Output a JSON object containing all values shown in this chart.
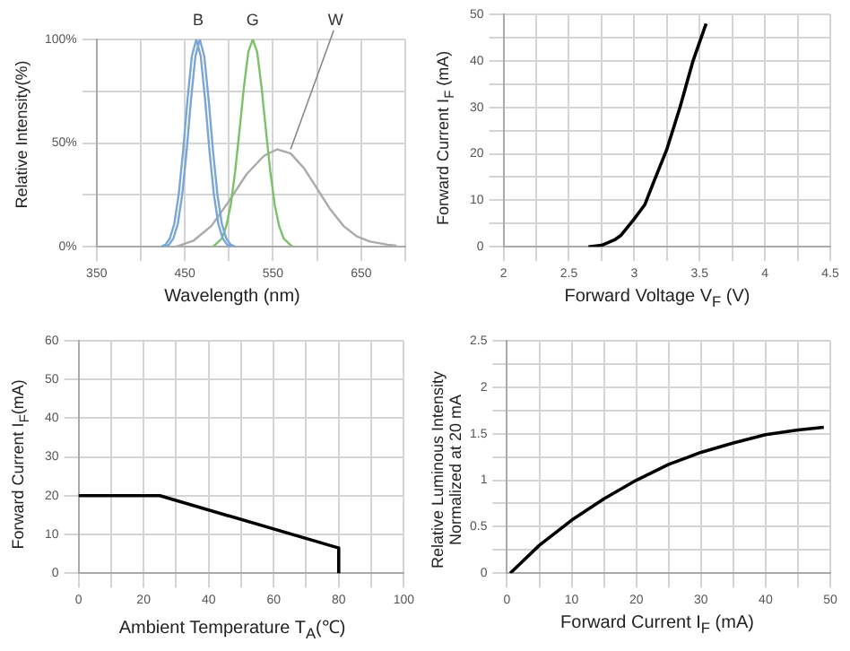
{
  "chart_data": [
    {
      "type": "line",
      "xlabel": "Wavelength  (nm)",
      "ylabel": "Relative Intensity(%)",
      "xlim": [
        350,
        700
      ],
      "ylim": [
        0,
        100
      ],
      "xticks": [
        350,
        {
          "value": 400,
          "label": null
        },
        450,
        {
          "value": 500,
          "label": null
        },
        550,
        {
          "value": 600,
          "label": null
        },
        650,
        {
          "value": 700,
          "label": null
        }
      ],
      "yticks": [
        {
          "value": 0,
          "label": "0%"
        },
        {
          "value": 25,
          "label": null
        },
        {
          "value": 50,
          "label": "50%"
        },
        {
          "value": 75,
          "label": null
        },
        {
          "value": 100,
          "label": "100%"
        }
      ],
      "grid": true,
      "legend": false,
      "marker": "none",
      "line_style": "solid",
      "annotations": [
        {
          "text": "B",
          "x": 465,
          "y": 100
        },
        {
          "text": "G",
          "x": 527,
          "y": 100
        },
        {
          "text": "W",
          "x": 570,
          "y": 47
        }
      ],
      "series": [
        {
          "color": "#7aa6d6",
          "x": [
            423,
            428,
            433,
            438,
            443,
            448,
            453,
            458,
            463,
            468,
            473,
            478,
            483,
            488,
            493,
            498,
            503
          ],
          "values": [
            0,
            1,
            4,
            11,
            25,
            46,
            71,
            92,
            100,
            92,
            71,
            46,
            25,
            11,
            4,
            1,
            0
          ]
        },
        {
          "color": "#7aa6d6",
          "x": [
            427,
            432,
            437,
            442,
            447,
            452,
            457,
            462,
            467,
            472,
            477,
            482,
            487,
            492,
            497,
            502,
            507
          ],
          "values": [
            0,
            1,
            4,
            11,
            25,
            46,
            71,
            92,
            100,
            92,
            71,
            46,
            25,
            11,
            4,
            1,
            0
          ]
        },
        {
          "color": "#7cc16a",
          "x": [
            482,
            487,
            492,
            497,
            502,
            507,
            512,
            517,
            522,
            527,
            532,
            537,
            542,
            547,
            552,
            557,
            562,
            567,
            572
          ],
          "values": [
            0,
            2,
            4,
            10,
            20,
            36,
            56,
            77,
            94,
            100,
            94,
            77,
            56,
            36,
            20,
            10,
            4,
            2,
            0
          ]
        },
        {
          "color": "#aaaaaa",
          "x": [
            440,
            460,
            480,
            500,
            520,
            540,
            555,
            570,
            585,
            600,
            615,
            630,
            645,
            660,
            680,
            690
          ],
          "values": [
            0,
            3,
            10,
            22,
            35,
            44,
            47,
            45,
            38,
            28,
            18,
            10,
            5,
            2.5,
            1,
            0.5
          ]
        }
      ]
    },
    {
      "type": "line",
      "xlabel": "Forward Voltage V$_{F}$ (V)",
      "ylabel": "Forward Current I$_{F}$ (mA)",
      "xlim": [
        2,
        4.5
      ],
      "ylim": [
        0,
        50
      ],
      "xticks": [
        2,
        {
          "value": 2.25,
          "label": null
        },
        2.5,
        {
          "value": 2.75,
          "label": null
        },
        3,
        {
          "value": 3.25,
          "label": null
        },
        3.5,
        {
          "value": 3.75,
          "label": null
        },
        4,
        {
          "value": 4.25,
          "label": null
        },
        4.5
      ],
      "yticks": [
        0,
        {
          "value": 5,
          "label": null
        },
        10,
        {
          "value": 15,
          "label": null
        },
        20,
        {
          "value": 25,
          "label": null
        },
        30,
        {
          "value": 35,
          "label": null
        },
        40,
        {
          "value": 45,
          "label": null
        },
        50
      ],
      "grid": true,
      "legend": false,
      "marker": "none",
      "line_style": "solid",
      "series": [
        {
          "color": "#000000",
          "x": [
            2.65,
            2.75,
            2.85,
            2.9,
            3.0,
            3.08,
            3.15,
            3.25,
            3.35,
            3.45,
            3.5,
            3.55
          ],
          "values": [
            0,
            0.3,
            1.5,
            2.5,
            6,
            9,
            14,
            21,
            30,
            40,
            44,
            48
          ]
        }
      ]
    },
    {
      "type": "line",
      "xlabel": "Ambient  Temperature  T$_{A}$(℃)",
      "ylabel": "Forward Current I$_{F}$(mA)",
      "xlim": [
        0,
        100
      ],
      "ylim": [
        0,
        60
      ],
      "xticks": [
        0,
        {
          "value": 10,
          "label": null
        },
        20,
        {
          "value": 30,
          "label": null
        },
        40,
        {
          "value": 50,
          "label": null
        },
        60,
        {
          "value": 70,
          "label": null
        },
        80,
        {
          "value": 90,
          "label": null
        },
        100
      ],
      "yticks": [
        0,
        10,
        20,
        30,
        40,
        50,
        60
      ],
      "grid": true,
      "legend": false,
      "marker": "none",
      "line_style": "solid",
      "series": [
        {
          "color": "#000000",
          "x": [
            0,
            25,
            80,
            80
          ],
          "values": [
            20,
            20,
            6.5,
            0
          ]
        }
      ]
    },
    {
      "type": "line",
      "xlabel": "Forward Current I$_{F}$ (mA)",
      "ylabel": "Relative Luminous Intensity\nNormalized at 20 mA",
      "xlim": [
        0,
        50
      ],
      "ylim": [
        0,
        2.5
      ],
      "xticks": [
        0,
        {
          "value": 5,
          "label": null
        },
        10,
        {
          "value": 15,
          "label": null
        },
        20,
        {
          "value": 25,
          "label": null
        },
        30,
        {
          "value": 35,
          "label": null
        },
        40,
        {
          "value": 45,
          "label": null
        },
        50
      ],
      "yticks": [
        0,
        {
          "value": 0.25,
          "label": null
        },
        0.5,
        {
          "value": 0.75,
          "label": null
        },
        1,
        {
          "value": 1.25,
          "label": null
        },
        1.5,
        {
          "value": 1.75,
          "label": null
        },
        2,
        {
          "value": 2.25,
          "label": null
        },
        2.5
      ],
      "grid": true,
      "legend": false,
      "marker": "none",
      "line_style": "solid",
      "series": [
        {
          "color": "#000000",
          "x": [
            0.5,
            5,
            10,
            15,
            20,
            25,
            30,
            35,
            40,
            45,
            49
          ],
          "values": [
            0,
            0.3,
            0.57,
            0.8,
            1.0,
            1.17,
            1.3,
            1.4,
            1.49,
            1.54,
            1.57
          ]
        }
      ]
    }
  ]
}
